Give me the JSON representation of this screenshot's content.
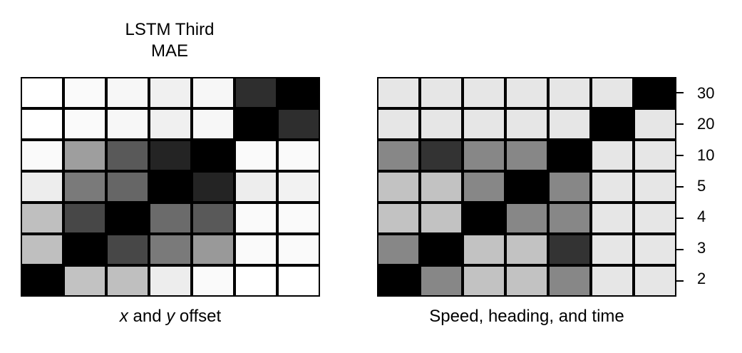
{
  "figure": {
    "title_line1": "LSTM Third",
    "title_line2": "MAE"
  },
  "chart_data": [
    {
      "type": "heatmap",
      "xlabel_parts": [
        "x",
        " and ",
        "y",
        " offset"
      ],
      "ylabel": "",
      "yticks": [
        "30",
        "20",
        "10",
        "5",
        "4",
        "3",
        "2"
      ],
      "colormap": "grayscale, darker = higher",
      "cells": [
        [
          0.0,
          0.02,
          0.03,
          0.06,
          0.03,
          0.82,
          1.0
        ],
        [
          0.0,
          0.02,
          0.03,
          0.06,
          0.03,
          1.0,
          0.82
        ],
        [
          0.02,
          0.38,
          0.65,
          0.86,
          1.0,
          0.02,
          0.02
        ],
        [
          0.07,
          0.52,
          0.6,
          1.0,
          0.86,
          0.07,
          0.05
        ],
        [
          0.25,
          0.72,
          1.0,
          0.58,
          0.65,
          0.02,
          0.02
        ],
        [
          0.25,
          1.0,
          0.72,
          0.52,
          0.4,
          0.02,
          0.02
        ],
        [
          1.0,
          0.24,
          0.25,
          0.07,
          0.02,
          0.0,
          0.0
        ]
      ]
    },
    {
      "type": "heatmap",
      "xlabel": "Speed, heading, and time",
      "ylabel": "",
      "yticks": [
        "30",
        "20",
        "10",
        "5",
        "4",
        "3",
        "2"
      ],
      "colormap": "grayscale, darker = higher",
      "cells": [
        [
          0.1,
          0.1,
          0.1,
          0.1,
          0.1,
          0.1,
          1.0
        ],
        [
          0.1,
          0.1,
          0.1,
          0.1,
          0.1,
          1.0,
          0.1
        ],
        [
          0.47,
          0.8,
          0.47,
          0.47,
          1.0,
          0.1,
          0.1
        ],
        [
          0.24,
          0.24,
          0.47,
          1.0,
          0.47,
          0.1,
          0.1
        ],
        [
          0.24,
          0.24,
          1.0,
          0.47,
          0.47,
          0.1,
          0.1
        ],
        [
          0.47,
          1.0,
          0.24,
          0.24,
          0.8,
          0.1,
          0.1
        ],
        [
          1.0,
          0.47,
          0.24,
          0.24,
          0.47,
          0.1,
          0.1
        ]
      ]
    }
  ]
}
